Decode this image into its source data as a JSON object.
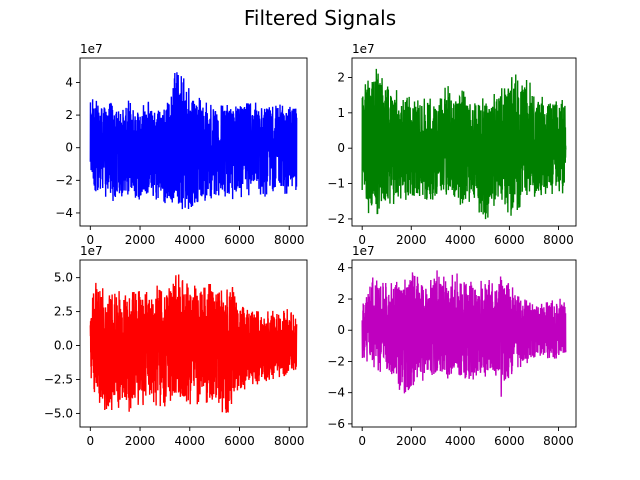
{
  "figure": {
    "suptitle": "Filtered Signals"
  },
  "chart_data": [
    {
      "type": "line",
      "title": "",
      "xlabel": "",
      "ylabel": "",
      "offset_text": "1e7",
      "color": "#0000ff",
      "n_points": 8300,
      "xlim": [
        -415,
        8715
      ],
      "ylim": [
        -4.8,
        5.5
      ],
      "xticks": [
        0,
        2000,
        4000,
        6000,
        8000
      ],
      "yticks": [
        -4,
        -2,
        0,
        2,
        4
      ],
      "ytick_labels": [
        "−4",
        "−2",
        "0",
        "2",
        "4"
      ],
      "envelope": {
        "x": [
          0,
          500,
          1000,
          1500,
          2000,
          2500,
          3000,
          3500,
          4000,
          4500,
          5000,
          5500,
          6000,
          6500,
          7000,
          7500,
          8000,
          8300
        ],
        "max": [
          3.3,
          2.9,
          2.8,
          2.9,
          2.9,
          2.8,
          3.0,
          5.2,
          3.6,
          3.0,
          2.6,
          2.7,
          3.0,
          2.9,
          2.8,
          2.9,
          2.8,
          3.3
        ],
        "min": [
          -2.6,
          -3.1,
          -3.4,
          -3.2,
          -3.4,
          -3.1,
          -3.6,
          -4.0,
          -4.5,
          -3.6,
          -3.0,
          -3.3,
          -3.2,
          -2.9,
          -3.2,
          -2.8,
          -2.9,
          -3.1
        ]
      }
    },
    {
      "type": "line",
      "title": "",
      "xlabel": "",
      "ylabel": "",
      "offset_text": "1e7",
      "color": "#008000",
      "n_points": 8300,
      "xlim": [
        -415,
        8715
      ],
      "ylim": [
        -2.2,
        2.55
      ],
      "xticks": [
        0,
        2000,
        4000,
        6000,
        8000
      ],
      "yticks": [
        -2,
        -1,
        0,
        1,
        2
      ],
      "ytick_labels": [
        "−2",
        "−1",
        "0",
        "1",
        "2"
      ],
      "envelope": {
        "x": [
          0,
          300,
          600,
          1000,
          1500,
          2000,
          2500,
          3000,
          3500,
          4000,
          4500,
          5000,
          5500,
          6000,
          6300,
          6500,
          7000,
          7500,
          8000,
          8300
        ],
        "max": [
          1.8,
          2.4,
          2.3,
          1.9,
          1.6,
          1.5,
          1.4,
          1.6,
          1.9,
          1.7,
          1.4,
          1.5,
          1.6,
          2.0,
          2.3,
          2.2,
          1.7,
          1.5,
          1.5,
          1.5
        ],
        "min": [
          -1.5,
          -2.0,
          -2.1,
          -1.8,
          -1.6,
          -1.4,
          -1.5,
          -1.6,
          -1.4,
          -1.8,
          -1.5,
          -2.1,
          -1.6,
          -1.9,
          -2.0,
          -1.7,
          -1.4,
          -1.3,
          -1.3,
          -1.3
        ]
      }
    },
    {
      "type": "line",
      "title": "",
      "xlabel": "",
      "ylabel": "",
      "offset_text": "1e7",
      "color": "#ff0000",
      "n_points": 8300,
      "xlim": [
        -415,
        8715
      ],
      "ylim": [
        -6.0,
        6.3
      ],
      "xticks": [
        0,
        2000,
        4000,
        6000,
        8000
      ],
      "yticks": [
        -5.0,
        -2.5,
        0.0,
        2.5,
        5.0
      ],
      "ytick_labels": [
        "−5.0",
        "−2.5",
        "0.0",
        "2.5",
        "5.0"
      ],
      "envelope": {
        "x": [
          0,
          300,
          600,
          1000,
          1500,
          2000,
          2500,
          3000,
          3500,
          4000,
          4500,
          5000,
          5500,
          5800,
          6000,
          6500,
          7000,
          7500,
          8000,
          8300
        ],
        "max": [
          2.8,
          5.6,
          4.8,
          4.4,
          4.2,
          4.4,
          4.5,
          4.3,
          5.5,
          4.4,
          4.6,
          4.5,
          4.3,
          4.5,
          3.6,
          2.8,
          2.5,
          2.8,
          2.7,
          2.0
        ],
        "min": [
          -3.2,
          -4.2,
          -5.4,
          -4.6,
          -5.1,
          -4.5,
          -4.4,
          -4.6,
          -4.5,
          -4.4,
          -4.3,
          -4.5,
          -5.2,
          -4.8,
          -3.4,
          -3.0,
          -2.8,
          -2.4,
          -2.2,
          -2.2
        ]
      }
    },
    {
      "type": "line",
      "title": "",
      "xlabel": "",
      "ylabel": "",
      "offset_text": "1e7",
      "color": "#bf00bf",
      "n_points": 8300,
      "xlim": [
        -415,
        8715
      ],
      "ylim": [
        -6.2,
        4.5
      ],
      "xticks": [
        0,
        2000,
        4000,
        6000,
        8000
      ],
      "yticks": [
        -6,
        -4,
        -2,
        0,
        2,
        4
      ],
      "ytick_labels": [
        "−6",
        "−4",
        "−2",
        "0",
        "2",
        "4"
      ],
      "envelope": {
        "x": [
          0,
          500,
          1000,
          1500,
          2000,
          2500,
          3000,
          3500,
          4000,
          4500,
          5000,
          5500,
          5600,
          6000,
          6500,
          7000,
          7500,
          8000,
          8300
        ],
        "max": [
          2.5,
          3.6,
          3.3,
          3.5,
          3.8,
          3.6,
          3.9,
          3.3,
          4.1,
          3.5,
          3.4,
          3.3,
          3.6,
          3.5,
          2.2,
          1.6,
          1.8,
          2.3,
          1.8
        ],
        "min": [
          -1.8,
          -2.6,
          -2.8,
          -4.1,
          -4.3,
          -3.2,
          -3.0,
          -3.4,
          -3.1,
          -3.3,
          -3.1,
          -3.3,
          -5.6,
          -3.0,
          -2.3,
          -1.9,
          -2.0,
          -1.8,
          -1.7
        ]
      }
    }
  ]
}
